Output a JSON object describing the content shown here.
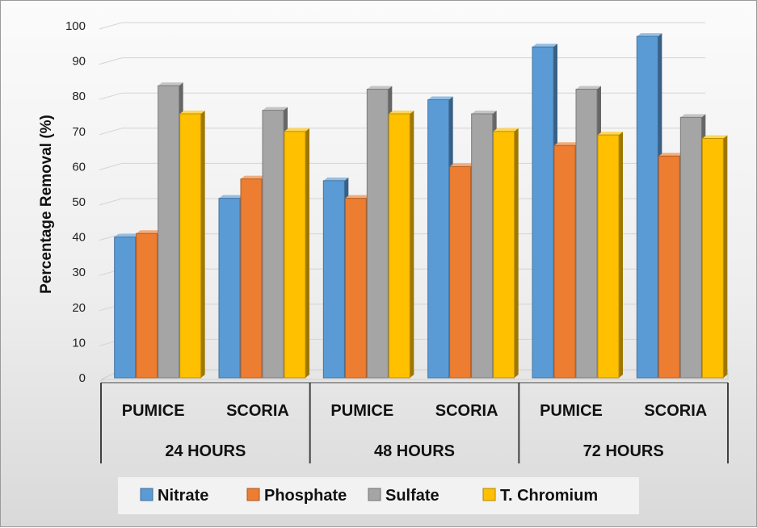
{
  "chart_data": {
    "type": "bar",
    "ylabel": "Percentage Removal (%)",
    "ylim": [
      0,
      100
    ],
    "yticks": [
      0,
      10,
      20,
      30,
      40,
      50,
      60,
      70,
      80,
      90,
      100
    ],
    "groups": [
      "24 HOURS",
      "48 HOURS",
      "72 HOURS"
    ],
    "categories": [
      "PUMICE",
      "SCORIA",
      "PUMICE",
      "SCORIA",
      "PUMICE",
      "SCORIA"
    ],
    "series": [
      {
        "name": "Nitrate",
        "color": "#5b9bd5",
        "values": [
          40,
          51,
          56,
          79,
          94,
          97
        ]
      },
      {
        "name": "Phosphate",
        "color": "#ed7d31",
        "values": [
          41,
          56.5,
          51,
          60,
          66,
          63
        ]
      },
      {
        "name": "Sulfate",
        "color": "#a5a5a5",
        "values": [
          83,
          76,
          82,
          75,
          82,
          74
        ]
      },
      {
        "name": "T. Chromium",
        "color": "#ffc000",
        "values": [
          75,
          70,
          75,
          70,
          69,
          68
        ]
      }
    ],
    "grid": true,
    "legend_position": "bottom"
  }
}
